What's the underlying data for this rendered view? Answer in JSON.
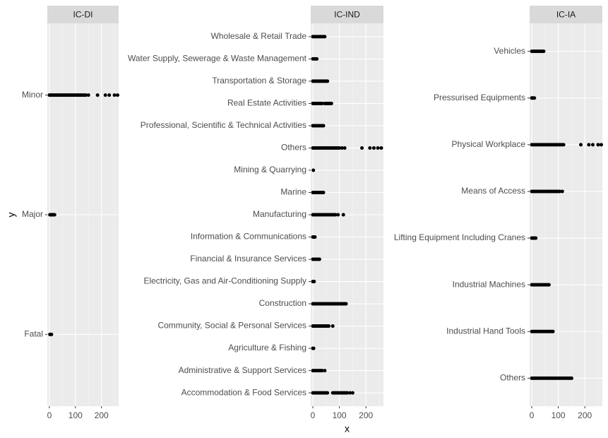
{
  "chart_data": [
    {
      "type": "scatter",
      "title": "IC-DI",
      "ylabel": "y",
      "categories": [
        "Minor",
        "Major",
        "Fatal"
      ],
      "x": [
        [
          0,
          5,
          10,
          15,
          20,
          25,
          30,
          35,
          40,
          45,
          50,
          55,
          60,
          65,
          70,
          75,
          80,
          85,
          90,
          95,
          100,
          105,
          110,
          115,
          120,
          125,
          130,
          135,
          140,
          150,
          185,
          215,
          230,
          250,
          262
        ],
        [
          2,
          5,
          8,
          12,
          15,
          20
        ],
        [
          2,
          5,
          8
        ]
      ],
      "xlim": [
        -8,
        266
      ],
      "xticks": [
        0,
        100,
        200
      ],
      "minor_xticks": [
        50,
        150,
        250
      ],
      "grid": true,
      "color": "#000000"
    },
    {
      "type": "scatter",
      "title": "IC-IND",
      "xlabel": "x",
      "categories": [
        "Wholesale & Retail Trade",
        "Water Supply, Sewerage & Waste Management",
        "Transportation & Storage",
        "Real Estate Activities",
        "Professional, Scientific & Technical Activities",
        "Others",
        "Mining & Quarrying",
        "Marine",
        "Manufacturing",
        "Information & Communications",
        "Financial & Insurance Services",
        "Electricity, Gas and Air-Conditioning Supply",
        "Construction",
        "Community, Social & Personal Services",
        "Agriculture & Fishing",
        "Administrative & Support Services",
        "Accommodation & Food Services"
      ],
      "x": [
        [
          0,
          5,
          10,
          15,
          20,
          25,
          30,
          35,
          40,
          45
        ],
        [
          0,
          5,
          10,
          15
        ],
        [
          0,
          5,
          10,
          15,
          20,
          25,
          30,
          35,
          40,
          45,
          50,
          55
        ],
        [
          0,
          5,
          10,
          15,
          20,
          25,
          30,
          35,
          45,
          50,
          55,
          60,
          65,
          70
        ],
        [
          0,
          5,
          10,
          15,
          20,
          25,
          30,
          35,
          40
        ],
        [
          0,
          5,
          10,
          15,
          20,
          25,
          30,
          35,
          40,
          45,
          50,
          55,
          60,
          65,
          70,
          75,
          80,
          85,
          90,
          95,
          100,
          110,
          120,
          185,
          215,
          230,
          245,
          258
        ],
        [
          2
        ],
        [
          0,
          5,
          10,
          15,
          20,
          25,
          30,
          35,
          40
        ],
        [
          0,
          5,
          10,
          15,
          20,
          25,
          30,
          35,
          40,
          45,
          50,
          55,
          60,
          65,
          70,
          75,
          80,
          85,
          95,
          115
        ],
        [
          0,
          3,
          6,
          8
        ],
        [
          0,
          5,
          10,
          15,
          20,
          25
        ],
        [
          0,
          3,
          5
        ],
        [
          0,
          5,
          10,
          15,
          20,
          25,
          30,
          35,
          40,
          45,
          50,
          55,
          60,
          65,
          70,
          75,
          80,
          85,
          90,
          95,
          100,
          105,
          110,
          115,
          120,
          125
        ],
        [
          0,
          5,
          10,
          15,
          20,
          25,
          30,
          35,
          40,
          45,
          50,
          55,
          60,
          75
        ],
        [
          0,
          3
        ],
        [
          0,
          5,
          10,
          15,
          20,
          25,
          30,
          35,
          45
        ],
        [
          0,
          5,
          10,
          15,
          20,
          25,
          30,
          35,
          40,
          45,
          50,
          55,
          75,
          80,
          85,
          90,
          95,
          100,
          105,
          110,
          115,
          120,
          125,
          130,
          140,
          150
        ]
      ],
      "xlim": [
        -8,
        266
      ],
      "xticks": [
        0,
        100,
        200
      ],
      "minor_xticks": [
        50,
        150,
        250
      ],
      "grid": true,
      "color": "#000000"
    },
    {
      "type": "scatter",
      "title": "IC-IA",
      "categories": [
        "Vehicles",
        "Pressurised Equipments",
        "Physical Workplace",
        "Means of Access",
        "Lifting Equipment Including Cranes",
        "Industrial Machines",
        "Industrial Hand Tools",
        "Others"
      ],
      "x": [
        [
          0,
          5,
          10,
          15,
          20,
          25,
          30,
          35,
          40,
          45
        ],
        [
          0,
          3,
          6,
          10
        ],
        [
          0,
          5,
          10,
          15,
          20,
          25,
          30,
          35,
          40,
          45,
          50,
          55,
          60,
          65,
          70,
          75,
          80,
          85,
          90,
          95,
          100,
          105,
          110,
          115,
          120,
          185,
          215,
          230,
          250,
          262
        ],
        [
          0,
          5,
          10,
          15,
          20,
          25,
          30,
          35,
          40,
          45,
          50,
          55,
          60,
          65,
          70,
          75,
          80,
          85,
          90,
          95,
          100,
          105,
          115
        ],
        [
          0,
          5,
          10,
          15
        ],
        [
          0,
          5,
          10,
          15,
          20,
          25,
          30,
          35,
          40,
          45,
          50,
          55,
          60,
          65
        ],
        [
          0,
          5,
          10,
          15,
          20,
          25,
          30,
          35,
          40,
          45,
          50,
          55,
          60,
          65,
          70,
          75,
          80
        ],
        [
          0,
          5,
          10,
          15,
          20,
          25,
          30,
          35,
          40,
          45,
          50,
          55,
          60,
          65,
          70,
          75,
          80,
          85,
          90,
          95,
          100,
          105,
          110,
          115,
          120,
          125,
          130,
          135,
          140,
          145,
          150
        ]
      ],
      "xlim": [
        -8,
        266
      ],
      "xticks": [
        0,
        100,
        200
      ],
      "minor_xticks": [
        50,
        150,
        250
      ],
      "grid": true,
      "color": "#000000"
    }
  ]
}
